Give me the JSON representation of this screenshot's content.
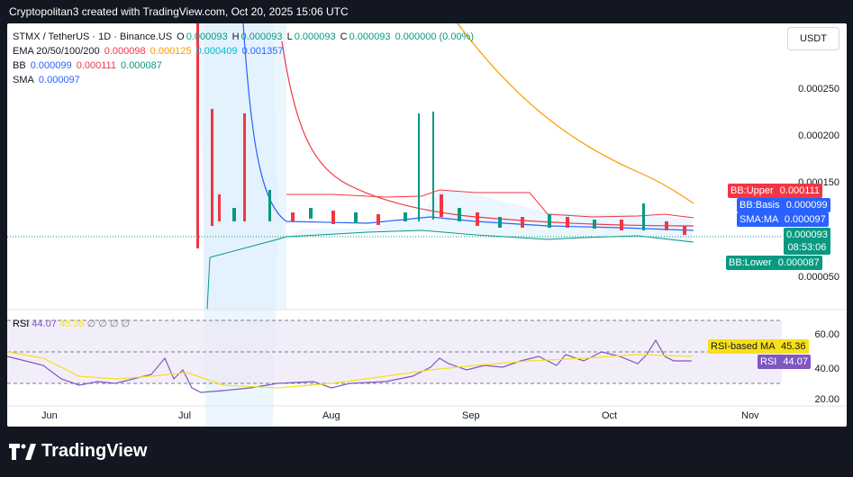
{
  "header": {
    "text": "Cryptopolitan3 created with TradingView.com, Oct 20, 2025 15:06 UTC"
  },
  "legend": {
    "symbol": "STMX / TetherUS · 1D · Binance.US",
    "ohlc": {
      "o_label": "O",
      "o": "0.000093",
      "h_label": "H",
      "h": "0.000093",
      "l_label": "L",
      "l": "0.000093",
      "c_label": "C",
      "c": "0.000093",
      "change": "0.000000 (0.00%)"
    },
    "ema": {
      "label": "EMA 20/50/100/200",
      "v20": "0.000098",
      "v50": "0.000125",
      "v100": "0.000409",
      "v200": "0.001357"
    },
    "bb": {
      "label": "BB",
      "basis": "0.000099",
      "upper": "0.000111",
      "lower": "0.000087"
    },
    "sma": {
      "label": "SMA",
      "value": "0.000097"
    }
  },
  "rsi_legend": {
    "label": "RSI",
    "rsi": "44.07",
    "ma": "45.36",
    "extra": "∅ ∅ ∅ ∅"
  },
  "currency_button": "USDT",
  "price_axis": [
    "0.000250",
    "0.000200",
    "0.000150",
    "0.000050"
  ],
  "rsi_axis": [
    "60.00",
    "40.00",
    "20.00"
  ],
  "time_axis": [
    "Jun",
    "Jul",
    "Aug",
    "Sep",
    "Oct",
    "Nov"
  ],
  "badges": {
    "bb_upper": {
      "label": "BB:Upper",
      "value": "0.000111",
      "color": "#f23645"
    },
    "bb_basis": {
      "label": "BB:Basis",
      "value": "0.000099",
      "color": "#2962ff"
    },
    "sma_ma": {
      "label": "SMA:MA",
      "value": "0.000097",
      "color": "#2962ff"
    },
    "last_price": {
      "value": "0.000093",
      "countdown": "08:53:06",
      "color": "#089981"
    },
    "bb_lower": {
      "label": "BB:Lower",
      "value": "0.000087",
      "color": "#089981"
    },
    "rsi_ma": {
      "label": "RSI-based MA",
      "value": "45.36",
      "color": "#f7e01b"
    },
    "rsi": {
      "label": "RSI",
      "value": "44.07",
      "color": "#7e57c2"
    }
  },
  "colors": {
    "up": "#089981",
    "down": "#f23645",
    "ema20": "#f23645",
    "ema50": "#ff9800",
    "ema100": "#00bcd4",
    "ema200": "#2962ff",
    "rsi": "#7e57c2",
    "rsi_ma": "#f7e01b"
  },
  "brand": "TradingView"
}
